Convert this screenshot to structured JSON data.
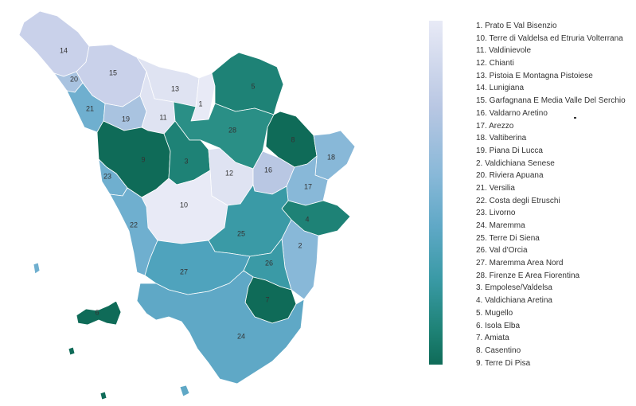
{
  "colors": {
    "lightest": "#e8eaf6",
    "light": "#c9d1ea",
    "mid_light": "#a9c3e0",
    "mid": "#6fafcf",
    "mid_dark": "#4fa3bd",
    "teal": "#2a8f86",
    "darkest": "#0f6b58"
  },
  "legend": {
    "items": [
      "1. Prato E Val Bisenzio",
      "10. Terre di Valdelsa ed Etruria Volterrana",
      "11. Valdinievole",
      "12. Chianti",
      "13. Pistoia E Montagna Pistoiese",
      "14. Lunigiana",
      "15. Garfagnana E Media Valle Del Serchio",
      "16. Valdarno Aretino",
      "17. Arezzo",
      "18. Valtiberina",
      "19. Piana Di Lucca",
      "2. Valdichiana Senese",
      "20. Riviera Apuana",
      "21. Versilia",
      "22. Costa degli Etruschi",
      "23. Livorno",
      "24. Maremma",
      "25. Terre Di Siena",
      "26. Val d'Orcia",
      "27. Maremma Area Nord",
      "28. Firenze E Area Fiorentina",
      "3. Empolese/Valdelsa",
      "4. Valdichiana Aretina",
      "5. Mugello",
      "6. Isola Elba",
      "7. Amiata",
      "8. Casentino",
      "9. Terre Di Pisa"
    ]
  },
  "map": {
    "region_labels": [
      "14",
      "20",
      "15",
      "13",
      "1",
      "5",
      "21",
      "19",
      "11",
      "28",
      "8",
      "18",
      "9",
      "3",
      "23",
      "12",
      "16",
      "17",
      "10",
      "4",
      "22",
      "25",
      "2",
      "26",
      "27",
      "7",
      "6",
      "24"
    ]
  }
}
